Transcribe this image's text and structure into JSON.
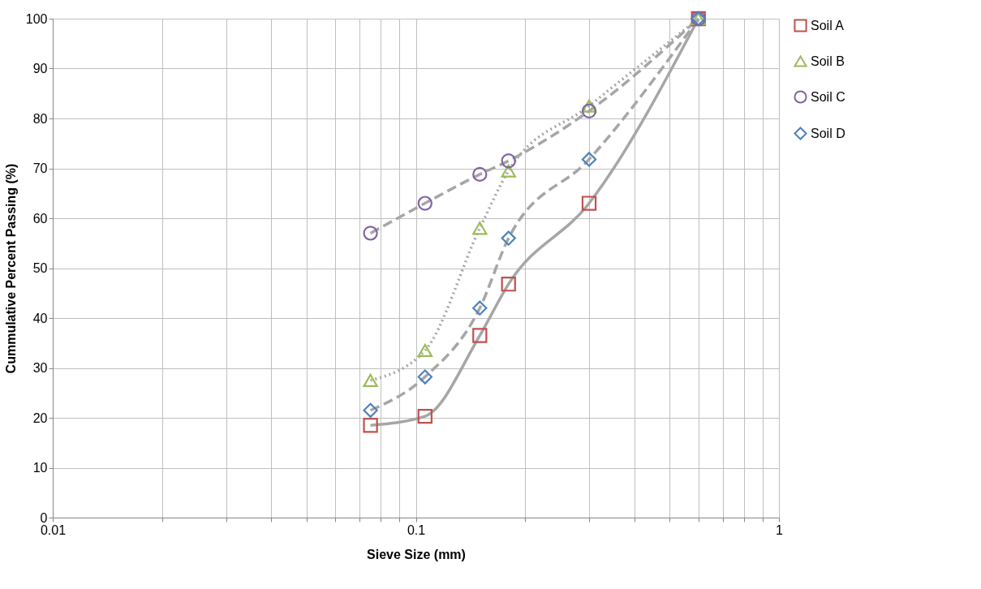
{
  "chart_data": {
    "type": "line",
    "xlabel": "Sieve Size (mm)",
    "ylabel": "Cummulative Percent Passing (%)",
    "log": "x",
    "grid": true,
    "legend": "right",
    "xlim": [
      0.01,
      1
    ],
    "ylim": [
      0,
      100
    ],
    "xticks": [
      0.01,
      {
        "value": 0.02,
        "label": null
      },
      {
        "value": 0.03,
        "label": null
      },
      {
        "value": 0.04,
        "label": null
      },
      {
        "value": 0.05,
        "label": null
      },
      {
        "value": 0.06,
        "label": null
      },
      {
        "value": 0.07,
        "label": null
      },
      {
        "value": 0.08,
        "label": null
      },
      {
        "value": 0.09,
        "label": null
      },
      0.1,
      {
        "value": 0.2,
        "label": null
      },
      {
        "value": 0.3,
        "label": null
      },
      {
        "value": 0.4,
        "label": null
      },
      {
        "value": 0.5,
        "label": null
      },
      {
        "value": 0.6,
        "label": null
      },
      {
        "value": 0.7,
        "label": null
      },
      {
        "value": 0.8,
        "label": null
      },
      {
        "value": 0.9,
        "label": null
      },
      1
    ],
    "yticks": [
      0,
      10,
      20,
      30,
      40,
      50,
      60,
      70,
      80,
      90,
      100
    ],
    "x": [
      0.075,
      0.106,
      0.15,
      0.18,
      0.3,
      0.6
    ],
    "series": [
      {
        "name": "Soil A",
        "color": "#c0504d",
        "marker": "square",
        "line_style": "solid",
        "values": [
          18.5,
          20.3,
          36.5,
          46.8,
          63,
          100
        ]
      },
      {
        "name": "Soil B",
        "color": "#9bbb59",
        "marker": "triangle",
        "line_style": "dotted",
        "values": [
          27.5,
          33.5,
          58,
          69.5,
          82.5,
          100
        ]
      },
      {
        "name": "Soil C",
        "color": "#8064a2",
        "marker": "circle",
        "line_style": "dashed",
        "values": [
          57,
          63,
          68.8,
          71.5,
          81.5,
          100
        ]
      },
      {
        "name": "Soil D",
        "color": "#4f81bd",
        "marker": "diamond",
        "line_style": "dashed",
        "values": [
          21.5,
          28.2,
          42,
          56,
          71.8,
          100
        ]
      }
    ]
  }
}
